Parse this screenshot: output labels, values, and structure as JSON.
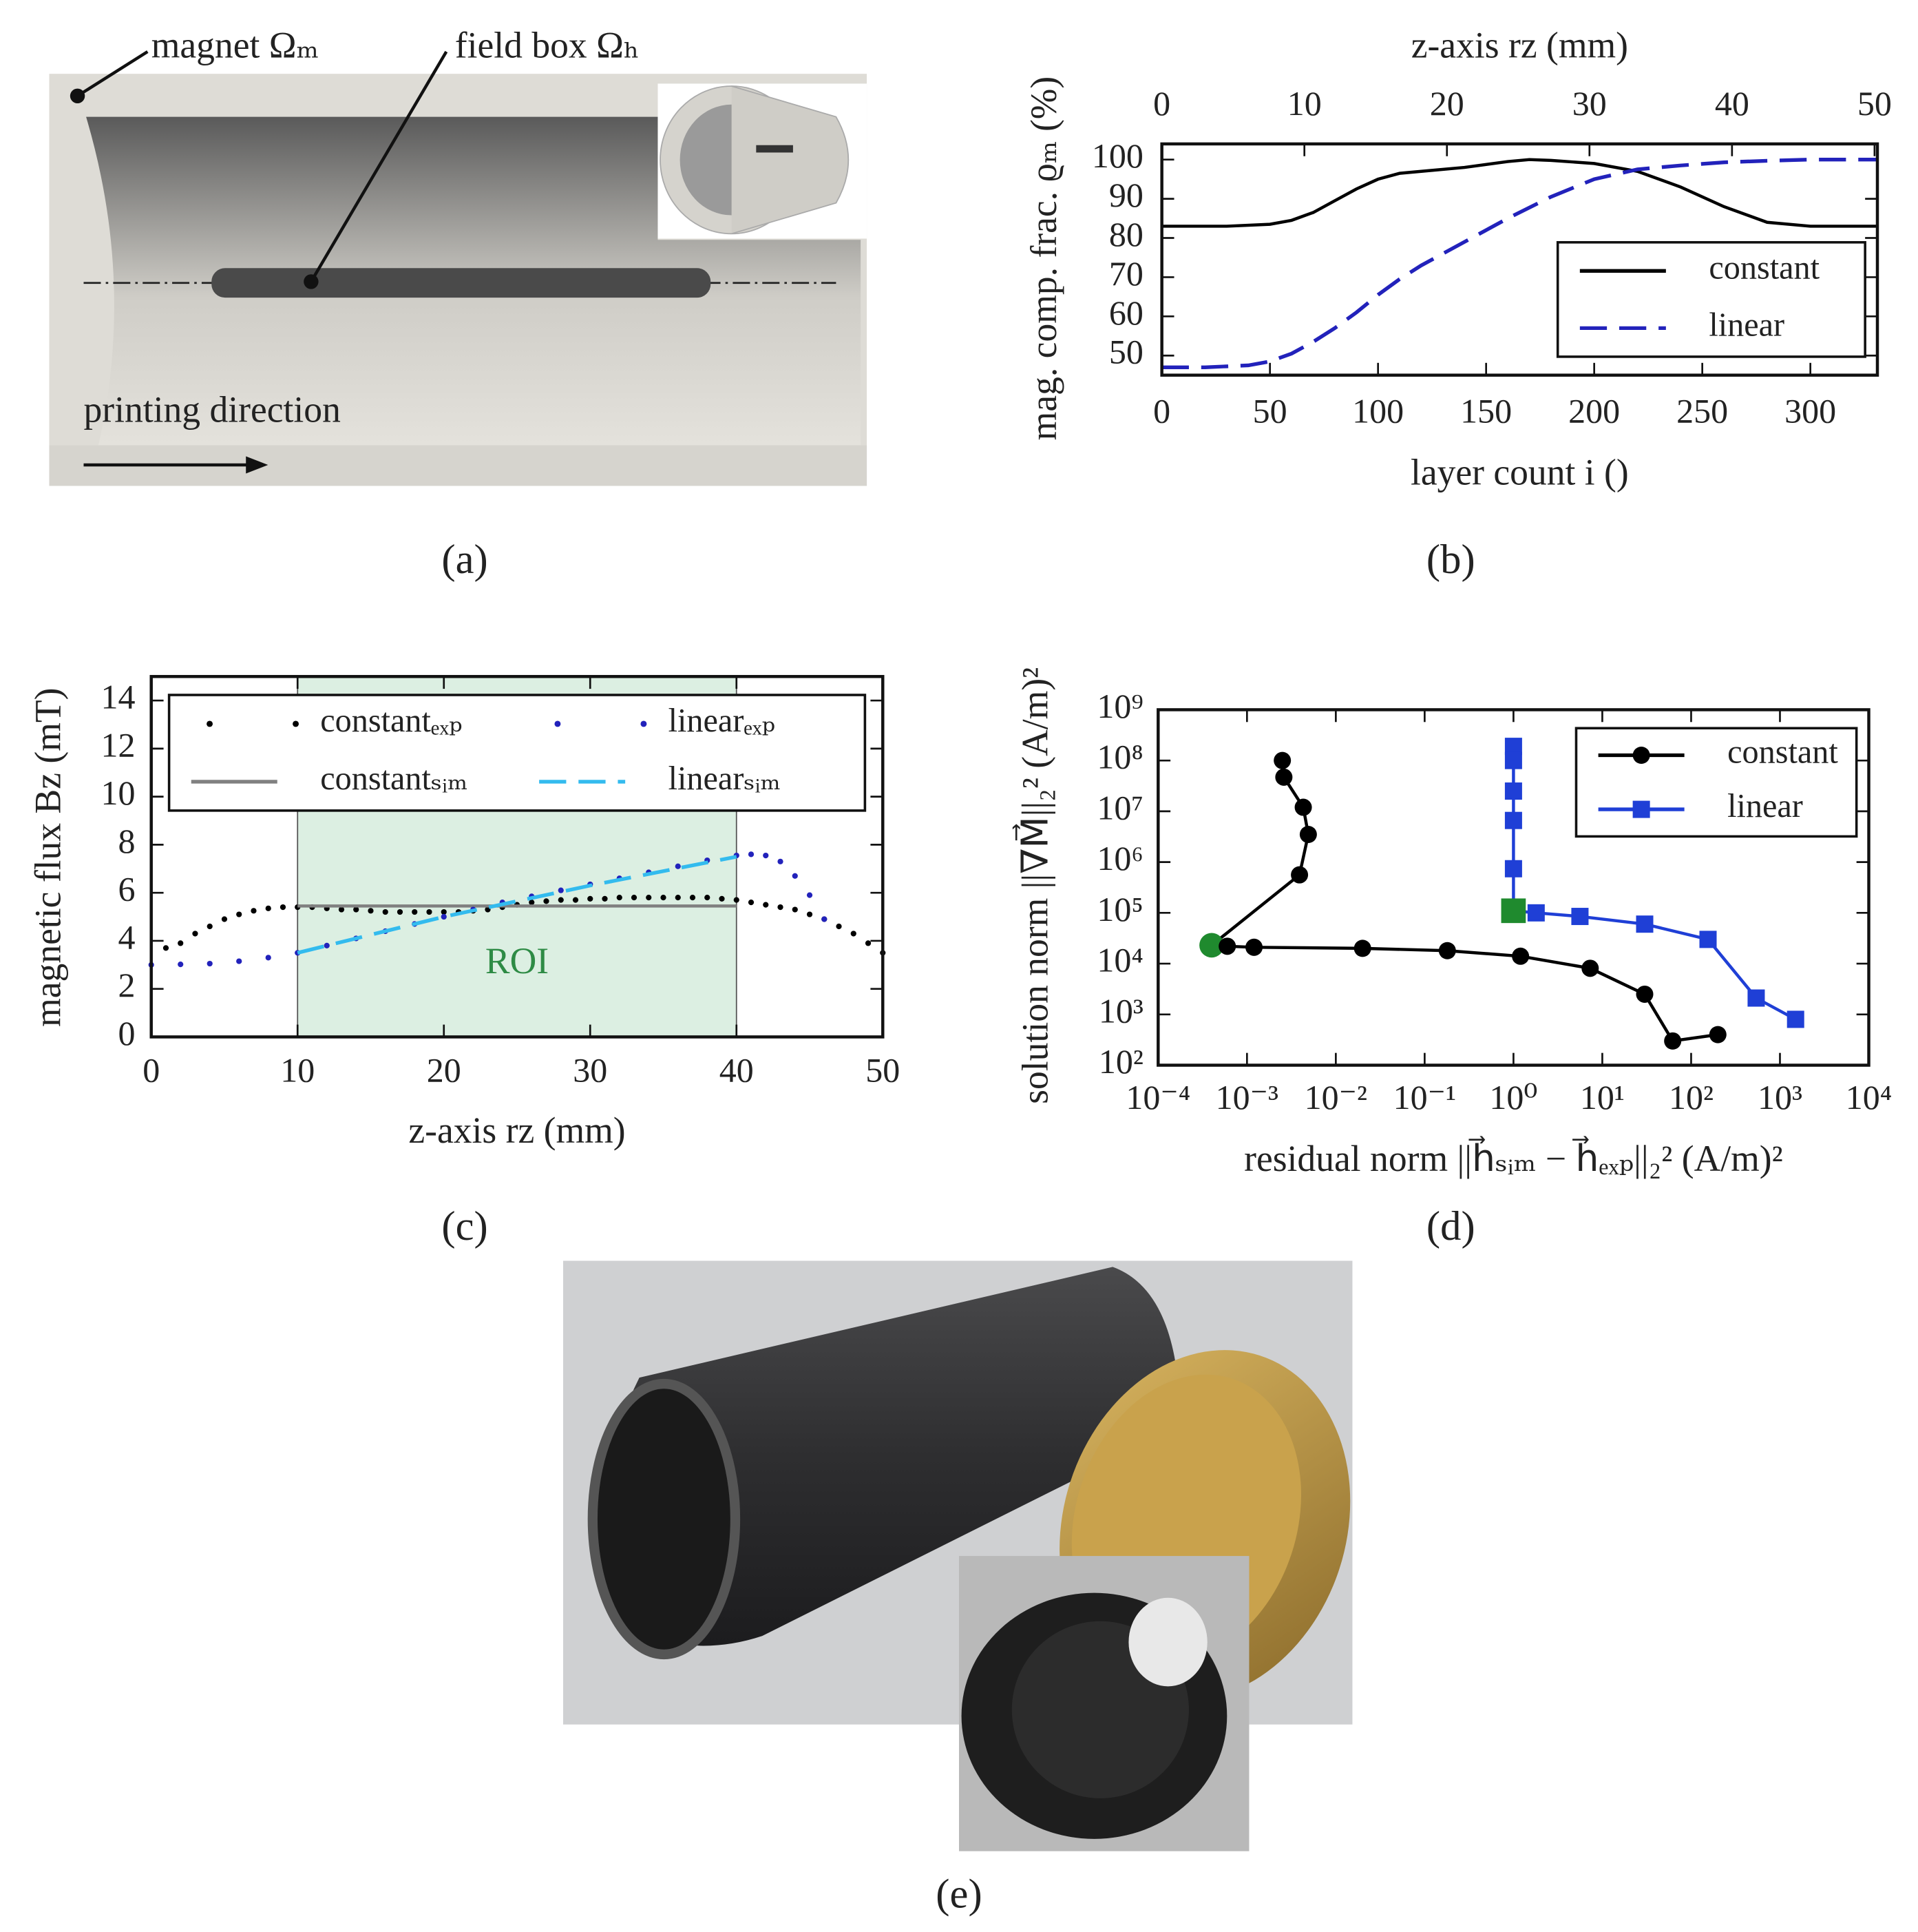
{
  "panels": {
    "a": {
      "label": "(a)",
      "magnet": "magnet Ωₘ",
      "field_box": "field box Ωₕ",
      "direction": "printing direction"
    },
    "e": {
      "label": "(e)"
    }
  },
  "chart_data": [
    {
      "type": "line",
      "panel_label": "(b)",
      "xlabel": "layer count i ()",
      "x2label": "z-axis rz (mm)",
      "ylabel": "mag. comp. frac. ϱₘ (%)",
      "xlim": [
        0,
        331
      ],
      "xticks": [
        0,
        50,
        100,
        150,
        200,
        250,
        300
      ],
      "x2lim": [
        0,
        50.2
      ],
      "x2ticks": [
        0,
        10,
        20,
        30,
        40,
        50
      ],
      "ylim": [
        45,
        104
      ],
      "yticks": [
        50,
        60,
        70,
        80,
        90,
        100
      ],
      "legend": "lower right",
      "legend_columns": 1,
      "series": [
        {
          "name": "constant",
          "color": "#000000",
          "linestyle": "solid",
          "marker": "none",
          "x": [
            0,
            30,
            50,
            60,
            70,
            80,
            90,
            100,
            110,
            120,
            140,
            160,
            170,
            180,
            200,
            220,
            240,
            260,
            280,
            300,
            331
          ],
          "values": [
            83,
            83,
            83.5,
            84.5,
            86.5,
            89.5,
            92.5,
            95,
            96.5,
            97,
            98,
            99.5,
            100,
            99.8,
            99,
            97,
            93,
            88,
            84,
            83,
            83
          ]
        },
        {
          "name": "linear",
          "color": "#2222bb",
          "linestyle": "dashed",
          "marker": "none",
          "x": [
            0,
            20,
            40,
            50,
            60,
            70,
            80,
            90,
            100,
            110,
            120,
            140,
            160,
            180,
            200,
            220,
            240,
            260,
            280,
            300,
            331
          ],
          "values": [
            47,
            47,
            47.5,
            48.5,
            50.5,
            53.5,
            57,
            61,
            65.5,
            69.5,
            73,
            79,
            85,
            90.5,
            95,
            97.5,
            98.5,
            99.3,
            99.7,
            100,
            100
          ]
        }
      ]
    },
    {
      "type": "line",
      "panel_label": "(c)",
      "xlabel": "z-axis rz (mm)",
      "ylabel": "magnetic flux Bz (mT)",
      "xlim": [
        0,
        50
      ],
      "xticks": [
        0,
        10,
        20,
        30,
        40,
        50
      ],
      "ylim": [
        0,
        15
      ],
      "yticks": [
        0,
        2,
        4,
        6,
        8,
        10,
        12,
        14
      ],
      "shade": {
        "x": [
          10,
          40
        ],
        "label": "ROI",
        "color": "#dcefe2",
        "text_color": "#2e8b45"
      },
      "legend": "upper center",
      "legend_columns": 2,
      "series": [
        {
          "name": "constantₑₓₚ",
          "color": "#000000",
          "linestyle": "none",
          "marker": "dot",
          "x": [
            1,
            2,
            3,
            4,
            5,
            6,
            7,
            8,
            9,
            10,
            11,
            12,
            13,
            14,
            15,
            16,
            17,
            18,
            19,
            20,
            21,
            22,
            23,
            24,
            25,
            26,
            27,
            28,
            29,
            30,
            31,
            32,
            33,
            34,
            35,
            36,
            37,
            38,
            39,
            40,
            41,
            42,
            43,
            44,
            45,
            46,
            47,
            48,
            49,
            50
          ],
          "values": [
            3.7,
            3.9,
            4.3,
            4.6,
            4.9,
            5.1,
            5.25,
            5.35,
            5.4,
            5.4,
            5.4,
            5.35,
            5.3,
            5.3,
            5.25,
            5.2,
            5.2,
            5.2,
            5.2,
            5.2,
            5.2,
            5.25,
            5.3,
            5.4,
            5.5,
            5.6,
            5.65,
            5.7,
            5.7,
            5.75,
            5.75,
            5.8,
            5.8,
            5.8,
            5.8,
            5.8,
            5.8,
            5.8,
            5.75,
            5.7,
            5.6,
            5.5,
            5.4,
            5.3,
            5.1,
            4.9,
            4.6,
            4.3,
            3.9,
            3.5
          ]
        },
        {
          "name": "constantₛᵢₘ",
          "color": "#808080",
          "linestyle": "solid",
          "marker": "none",
          "x": [
            10,
            40
          ],
          "values": [
            5.45,
            5.45
          ]
        },
        {
          "name": "linearₑₓₚ",
          "color": "#2222bb",
          "linestyle": "none",
          "marker": "dot",
          "x": [
            0,
            2,
            4,
            6,
            8,
            10,
            12,
            14,
            16,
            18,
            20,
            22,
            24,
            26,
            28,
            30,
            32,
            34,
            36,
            38,
            40,
            41,
            42,
            43,
            44,
            45,
            46
          ],
          "values": [
            3.0,
            3.02,
            3.05,
            3.15,
            3.3,
            3.5,
            3.8,
            4.1,
            4.4,
            4.7,
            5.0,
            5.3,
            5.6,
            5.85,
            6.1,
            6.35,
            6.6,
            6.85,
            7.1,
            7.35,
            7.55,
            7.6,
            7.55,
            7.3,
            6.7,
            5.9,
            4.9
          ]
        },
        {
          "name": "linearₛᵢₘ",
          "color": "#33bbee",
          "linestyle": "dashed",
          "marker": "none",
          "x": [
            10,
            20,
            30,
            40
          ],
          "values": [
            3.5,
            5.0,
            6.3,
            7.5
          ]
        }
      ]
    },
    {
      "type": "line",
      "panel_label": "(d)",
      "xlabel": "residual norm ||h⃗ₛᵢₘ − h⃗ₑₓₚ||₂² (A/m)²",
      "ylabel": "solution norm ||∇M⃗||₂² (A/m)²",
      "xscale": "log",
      "yscale": "log",
      "xlim": [
        0.0001,
        10000
      ],
      "xticks": [
        {
          "value": 0.0001,
          "label": "10⁻⁴"
        },
        {
          "value": 0.001,
          "label": "10⁻³"
        },
        {
          "value": 0.01,
          "label": "10⁻²"
        },
        {
          "value": 0.1,
          "label": "10⁻¹"
        },
        {
          "value": 1,
          "label": "10⁰"
        },
        {
          "value": 10,
          "label": "10¹"
        },
        {
          "value": 100,
          "label": "10²"
        },
        {
          "value": 1000,
          "label": "10³"
        },
        {
          "value": 10000,
          "label": "10⁴"
        }
      ],
      "ylim": [
        100,
        1000000000
      ],
      "yticks": [
        {
          "value": 100,
          "label": "10²"
        },
        {
          "value": 1000,
          "label": "10³"
        },
        {
          "value": 10000,
          "label": "10⁴"
        },
        {
          "value": 100000,
          "label": "10⁵"
        },
        {
          "value": 1000000,
          "label": "10⁶"
        },
        {
          "value": 10000000,
          "label": "10⁷"
        },
        {
          "value": 100000000,
          "label": "10⁸"
        },
        {
          "value": 1000000000,
          "label": "10⁹"
        }
      ],
      "legend": "upper right",
      "legend_columns": 1,
      "series": [
        {
          "name": "constant",
          "color": "#000000",
          "linestyle": "solid",
          "marker": "circle",
          "highlight": {
            "index": 5,
            "color": "#1f8a2e"
          },
          "x": [
            0.0025,
            0.0026,
            0.0043,
            0.0049,
            0.0039,
            0.0004,
            0.0006,
            0.0012,
            0.02,
            0.18,
            1.2,
            7.3,
            30,
            62,
            200
          ],
          "values": [
            100000000,
            47000000,
            12000000,
            3500000,
            560000,
            23000,
            22000,
            21000,
            20000,
            18000,
            14000,
            8100,
            2500,
            300,
            400
          ]
        },
        {
          "name": "linear",
          "color": "#1f3fd6",
          "linestyle": "solid",
          "marker": "square",
          "highlight": {
            "index": 5,
            "color": "#1f8a2e"
          },
          "x": [
            1,
            1,
            1,
            1,
            1,
            1,
            1.8,
            5.6,
            30,
            155,
            540,
            1500
          ],
          "values": [
            190000000,
            100000000,
            25000000,
            6600000,
            740000,
            110000,
            100000,
            85000,
            60000,
            30000,
            2100,
            800
          ]
        }
      ]
    }
  ]
}
